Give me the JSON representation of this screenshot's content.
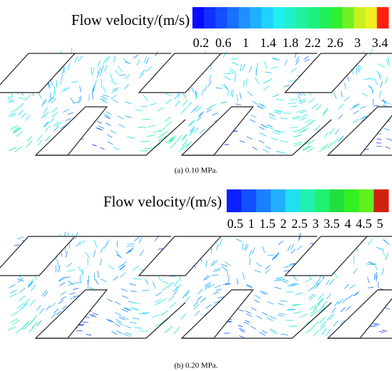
{
  "panels": [
    {
      "colorbar_title": "Flow velocity/(m/s)",
      "ticks": [
        "0.2",
        "0.6",
        "1",
        "1.4",
        "1.8",
        "2.2",
        "2.6",
        "3",
        "3.4"
      ],
      "colors": [
        "#0a0aff",
        "#1030ff",
        "#1550ff",
        "#1a70ff",
        "#1f90ff",
        "#20b0ff",
        "#20d0ff",
        "#20eef0",
        "#20f0c8",
        "#20f0a0",
        "#20f080",
        "#20ee5a",
        "#30ee30",
        "#70f020",
        "#c8f020",
        "#f0f020",
        "#ff2010"
      ],
      "caption": "(a) 0.10 MPa."
    },
    {
      "colorbar_title": "Flow velocity/(m/s)",
      "ticks": [
        "0.5",
        "1",
        "1.5",
        "2",
        "2.5",
        "3",
        "3.5",
        "4",
        "4.5",
        "5"
      ],
      "colors": [
        "#0a20ff",
        "#1050ff",
        "#1a80ff",
        "#20b0ff",
        "#20e0f0",
        "#20f0b0",
        "#20f070",
        "#20e040",
        "#30f020",
        "#60f020",
        "#d02010"
      ],
      "caption": "(b) 0.20 MPa."
    }
  ]
}
